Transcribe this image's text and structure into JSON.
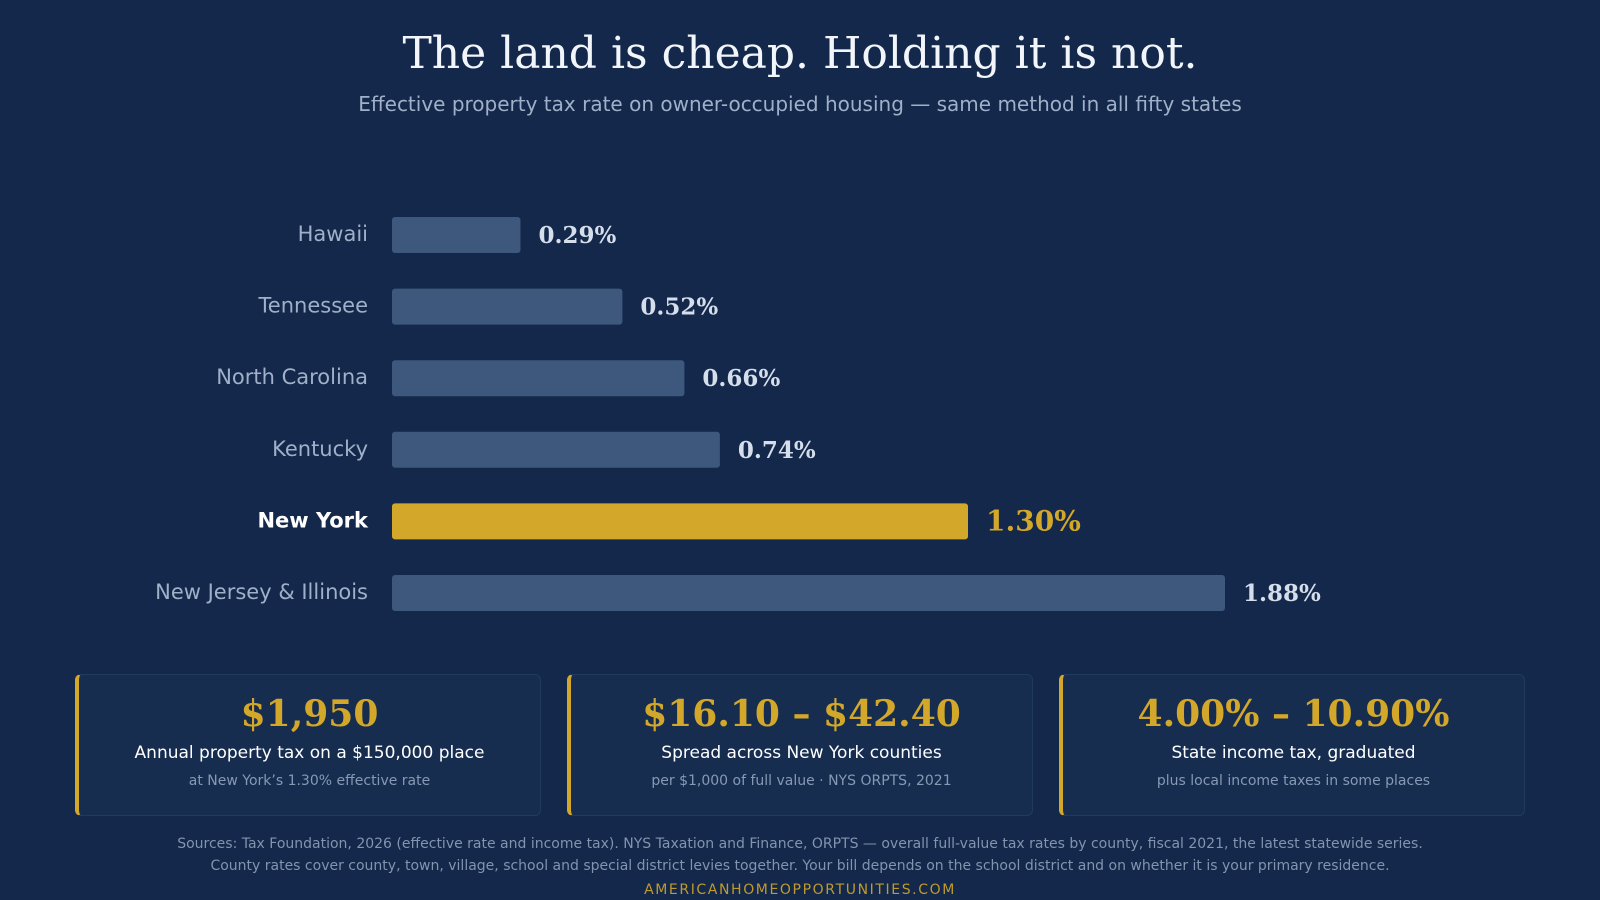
{
  "header": {
    "title": "The land is cheap. Holding it is not.",
    "subtitle": "Effective property tax rate on owner-occupied housing — same method in all fifty states"
  },
  "colors": {
    "background": "#13284a",
    "bar": "#3d587c",
    "highlight": "#d3a82a"
  },
  "chart_data": {
    "type": "bar",
    "orientation": "horizontal",
    "categories": [
      "Hawaii",
      "Tennessee",
      "North Carolina",
      "Kentucky",
      "New York",
      "New Jersey & Illinois"
    ],
    "values": [
      0.29,
      0.52,
      0.66,
      0.74,
      1.3,
      1.88
    ],
    "value_labels": [
      "0.29%",
      "0.52%",
      "0.66%",
      "0.74%",
      "1.30%",
      "1.88%"
    ],
    "highlight": "New York",
    "unit": "%",
    "xlim": [
      0,
      1.88
    ],
    "grid": false
  },
  "cards": [
    {
      "value": "$1,950",
      "label": "Annual property tax on a $150,000 place",
      "note": "at New York’s 1.30% effective rate"
    },
    {
      "value": "$16.10 – $42.40",
      "label": "Spread across New York counties",
      "note": "per $1,000 of full value · NYS ORPTS, 2021"
    },
    {
      "value": "4.00% – 10.90%",
      "label": "State income tax, graduated",
      "note": "plus local income taxes in some places"
    }
  ],
  "footer": {
    "sources_line1": "Sources: Tax Foundation, 2026 (effective rate and income tax). NYS Taxation and Finance, ORPTS — overall full-value tax rates by county, fiscal 2021, the latest statewide series.",
    "sources_line2": "County rates cover county, town, village, school and special district levies together. Your bill depends on the school district and on whether it is your primary residence.",
    "site": "AMERICANHOMEOPPORTUNITIES.COM"
  }
}
